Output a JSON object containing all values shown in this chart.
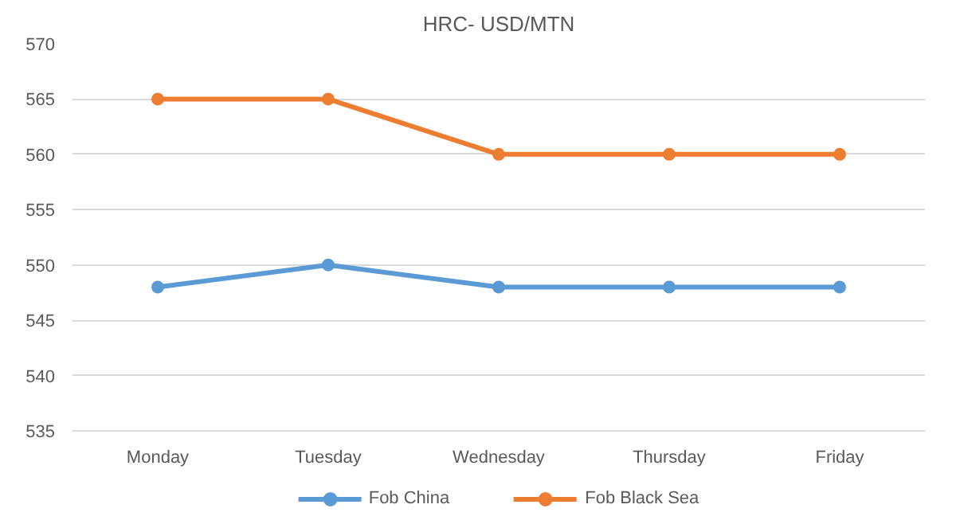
{
  "chart_data": {
    "type": "line",
    "title": "HRC- USD/MTN",
    "categories": [
      "Monday",
      "Tuesday",
      "Wednesday",
      "Thursday",
      "Friday"
    ],
    "series": [
      {
        "name": "Fob China",
        "color": "#5b9bd5",
        "values": [
          548,
          550,
          548,
          548,
          548
        ]
      },
      {
        "name": "Fob Black Sea",
        "color": "#ed7d31",
        "values": [
          565,
          565,
          560,
          560,
          560
        ]
      }
    ],
    "ylim": [
      535,
      570
    ],
    "yticks": [
      535,
      540,
      545,
      550,
      555,
      560,
      565,
      570
    ],
    "grid": "y",
    "legend": "bottom",
    "marker": "circle",
    "line_style": "solid"
  }
}
